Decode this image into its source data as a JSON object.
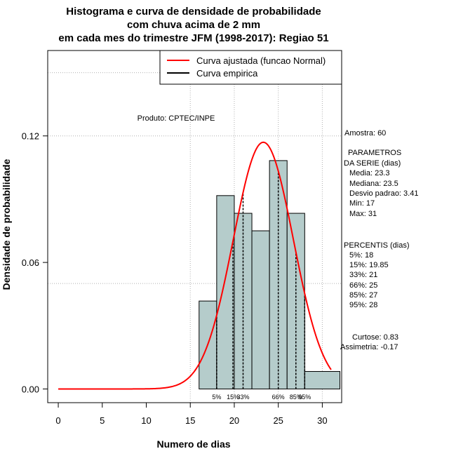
{
  "chart_data": {
    "type": "histogram",
    "title_lines": [
      "Histograma e curva de densidade de probabilidade",
      "com chuva acima de 2 mm",
      "em cada mes do trimestre JFM (1998-2017): Regiao 51"
    ],
    "xlabel": "Numero de dias",
    "ylabel": "Densidade de probabilidade",
    "xlim": [
      -1.2,
      32.2
    ],
    "ylim": [
      -0.0065,
      0.1605
    ],
    "x_ticks": [
      0,
      5,
      10,
      15,
      20,
      25,
      30
    ],
    "y_ticks": [
      0.0,
      0.06,
      0.12
    ],
    "y_tick_labels": [
      "0.00",
      "0.06",
      "0.12"
    ],
    "grid": true,
    "grid_x": [
      15,
      20,
      25,
      30
    ],
    "grid_y": [
      0.05,
      0.12,
      0.15
    ],
    "bin_width": 2,
    "bins": [
      {
        "start": 16,
        "end": 18,
        "density": 0.0417
      },
      {
        "start": 18,
        "end": 20,
        "density": 0.0917
      },
      {
        "start": 20,
        "end": 22,
        "density": 0.0833
      },
      {
        "start": 22,
        "end": 24,
        "density": 0.075
      },
      {
        "start": 24,
        "end": 26,
        "density": 0.1083
      },
      {
        "start": 26,
        "end": 28,
        "density": 0.0833
      },
      {
        "start": 28,
        "end": 32,
        "density": 0.0083
      }
    ],
    "bar_color": "#b5cccb",
    "normal_curve": {
      "mean": 23.3,
      "sd": 3.41,
      "x_range": [
        0,
        31
      ],
      "color": "#ff0000"
    },
    "percentiles": [
      {
        "label": "5%",
        "value": 18
      },
      {
        "label": "15%",
        "value": 19.85
      },
      {
        "label": "33%",
        "value": 21
      },
      {
        "label": "66%",
        "value": 25
      },
      {
        "label": "85%",
        "value": 27
      },
      {
        "label": "95%",
        "value": 28
      }
    ],
    "legend": {
      "position": "top-right",
      "entries": [
        {
          "label": "Curva ajustada (funcao Normal)",
          "color": "#ff0000"
        },
        {
          "label": "Curva empirica",
          "color": "#000000"
        }
      ]
    },
    "annotations": {
      "product": "Produto: CPTEC/INPE",
      "sample": "Amostra: 60",
      "params_header": [
        "PARAMETROS",
        "DA SERIE (dias)"
      ],
      "params": [
        "Media: 23.3",
        "Mediana: 23.5",
        "Desvio padrao: 3.41",
        "Min: 17",
        "Max: 31"
      ],
      "percentis_header": "PERCENTIS (dias)",
      "percentis": [
        "5%: 18",
        "15%: 19.85",
        "33%: 21",
        "66%: 25",
        "85%: 27",
        "95%: 28"
      ],
      "shape": [
        "Curtose: 0.83",
        "Assimetria: -0.17"
      ]
    }
  }
}
